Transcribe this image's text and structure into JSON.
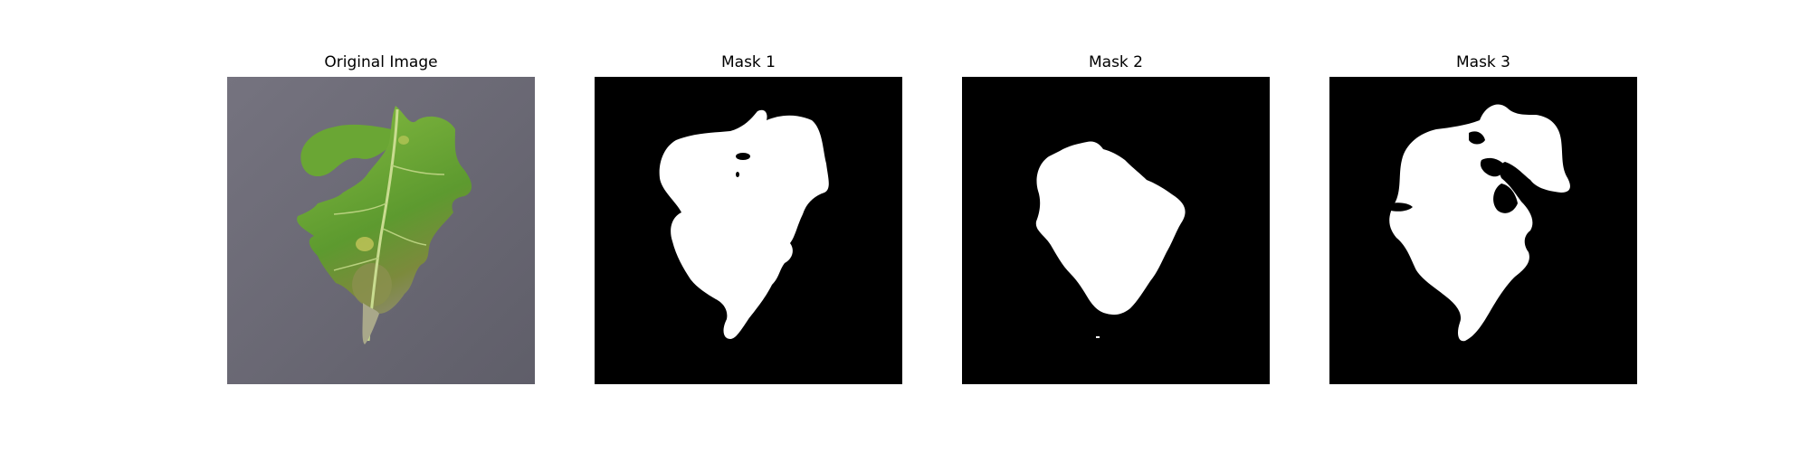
{
  "figure": {
    "panels": [
      {
        "title": "Original Image"
      },
      {
        "title": "Mask 1"
      },
      {
        "title": "Mask 2"
      },
      {
        "title": "Mask 3"
      }
    ]
  },
  "colors": {
    "background": "#6b6a76",
    "leaf_dark": "#4f8b2c",
    "leaf_light": "#8fc24a",
    "leaf_vein": "#c3d98a",
    "leaf_lesion": "#8a8a4a",
    "mask_background": "#000000",
    "mask_foreground": "#ffffff"
  }
}
